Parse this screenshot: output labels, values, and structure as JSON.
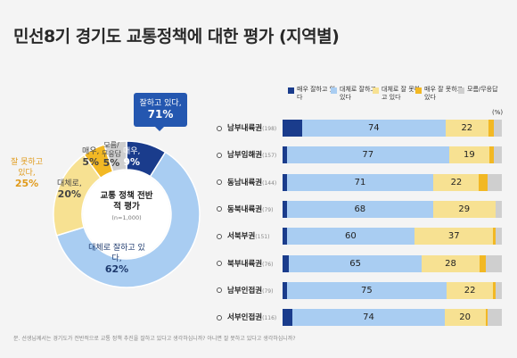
{
  "title": "민선8기 경기도 교통정책에 대한 평가 (지역별)",
  "colors": {
    "very_good": "#1a3c8c",
    "mostly_good": "#a9cdf2",
    "mostly_bad": "#f7e192",
    "very_bad": "#f2b824",
    "dk": "#cfcfcf",
    "good_box": "#2457b0",
    "bad_text": "#e09a1a"
  },
  "donut": {
    "center_title": "교통 정책 전반적 평가",
    "center_sub": "(n=1,000)",
    "good_box_label": "잘하고 있다,",
    "good_box_value": "71%",
    "bad_label": "잘 못하고 있다,",
    "bad_value": "25%",
    "slices": [
      {
        "label": "매우,",
        "value": 9,
        "display": "9%"
      },
      {
        "label": "대체로 잘하고 있다,",
        "value": 62,
        "display": "62%"
      },
      {
        "label": "대체로,",
        "value": 20,
        "display": "20%"
      },
      {
        "label": "매우,",
        "value": 5,
        "display": "5%"
      },
      {
        "label": "모름/무응답",
        "value": 5,
        "display": "5%"
      }
    ]
  },
  "legend": [
    {
      "label": "매우 잘하고 있다",
      "color": "#1a3c8c"
    },
    {
      "label": "대체로 잘하고 있다",
      "color": "#a9cdf2"
    },
    {
      "label": "대체로 잘 못하고 있다",
      "color": "#f7e192"
    },
    {
      "label": "매우 잘 못하고 있다",
      "color": "#f2b824"
    },
    {
      "label": "모름/무응답",
      "color": "#cfcfcf"
    }
  ],
  "unit": "(%)",
  "chart_data": {
    "type": "bar",
    "stacked": true,
    "orientation": "horizontal",
    "categories": [
      "남부내륙권",
      "남부임해권",
      "동남내륙권",
      "동북내륙권",
      "서북부권",
      "북부내륙권",
      "남부인접권",
      "서부인접권"
    ],
    "n": [
      "(198)",
      "(157)",
      "(144)",
      "(79)",
      "(151)",
      "(76)",
      "(79)",
      "(116)"
    ],
    "series": [
      {
        "name": "매우 잘하고 있다",
        "values": [
          10,
          2,
          2,
          2,
          2,
          3,
          2,
          5
        ]
      },
      {
        "name": "대체로 잘하고 있다",
        "values": [
          74,
          77,
          71,
          68,
          60,
          65,
          75,
          74
        ]
      },
      {
        "name": "대체로 잘 못하고 있다",
        "values": [
          22,
          19,
          22,
          29,
          37,
          28,
          22,
          20
        ]
      },
      {
        "name": "매우 잘 못하고 있다",
        "values": [
          3,
          2,
          4,
          0,
          1,
          3,
          1,
          1
        ]
      },
      {
        "name": "모름/무응답",
        "values": [
          4,
          4,
          7,
          3,
          3,
          8,
          3,
          7
        ]
      }
    ],
    "labeled": [
      false,
      true,
      true,
      false,
      false
    ]
  },
  "footnote": "문. 선생님께서는 경기도가 전반적으로 교통 정책 추진을 잘하고 있다고 생각하십니까? 아니면 잘 못하고 있다고 생각하십니까?"
}
